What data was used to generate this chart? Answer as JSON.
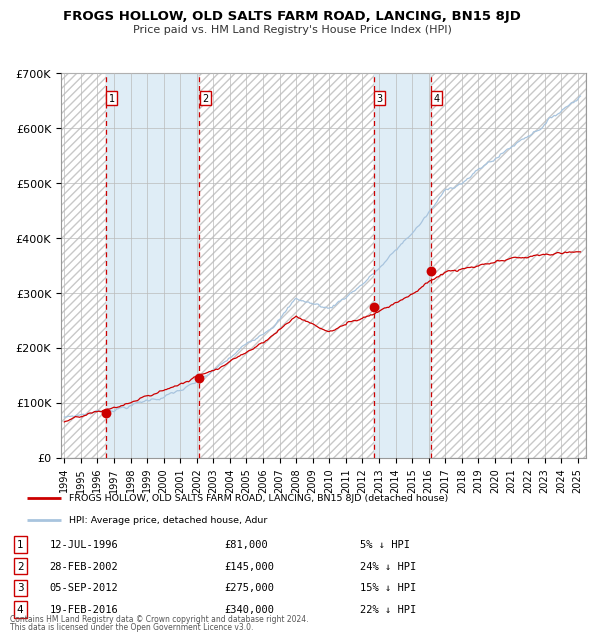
{
  "title": "FROGS HOLLOW, OLD SALTS FARM ROAD, LANCING, BN15 8JD",
  "subtitle": "Price paid vs. HM Land Registry's House Price Index (HPI)",
  "sale_year_floats": [
    1996.54,
    2002.16,
    2012.68,
    2016.13
  ],
  "sale_prices": [
    81000,
    145000,
    275000,
    340000
  ],
  "sale_labels": [
    "1",
    "2",
    "3",
    "4"
  ],
  "sale_date_labels": [
    "12-JUL-1996",
    "28-FEB-2002",
    "05-SEP-2012",
    "19-FEB-2016"
  ],
  "sale_price_labels": [
    "£81,000",
    "£145,000",
    "£275,000",
    "£340,000"
  ],
  "sale_hpi_labels": [
    "5% ↓ HPI",
    "24% ↓ HPI",
    "15% ↓ HPI",
    "22% ↓ HPI"
  ],
  "legend_line1": "FROGS HOLLOW, OLD SALTS FARM ROAD, LANCING, BN15 8JD (detached house)",
  "legend_line2": "HPI: Average price, detached house, Adur",
  "footnote1": "Contains HM Land Registry data © Crown copyright and database right 2024.",
  "footnote2": "This data is licensed under the Open Government Licence v3.0.",
  "hpi_color": "#a8c4de",
  "price_color": "#cc0000",
  "shade_color": "#daeaf5",
  "hatch_color": "#d8d8d8",
  "dashed_color": "#cc0000",
  "ylim": [
    0,
    700000
  ],
  "yticks": [
    0,
    100000,
    200000,
    300000,
    400000,
    500000,
    600000,
    700000
  ],
  "ytick_labels": [
    "£0",
    "£100K",
    "£200K",
    "£300K",
    "£400K",
    "£500K",
    "£600K",
    "£700K"
  ],
  "xstart": 1993.8,
  "xend": 2025.5
}
